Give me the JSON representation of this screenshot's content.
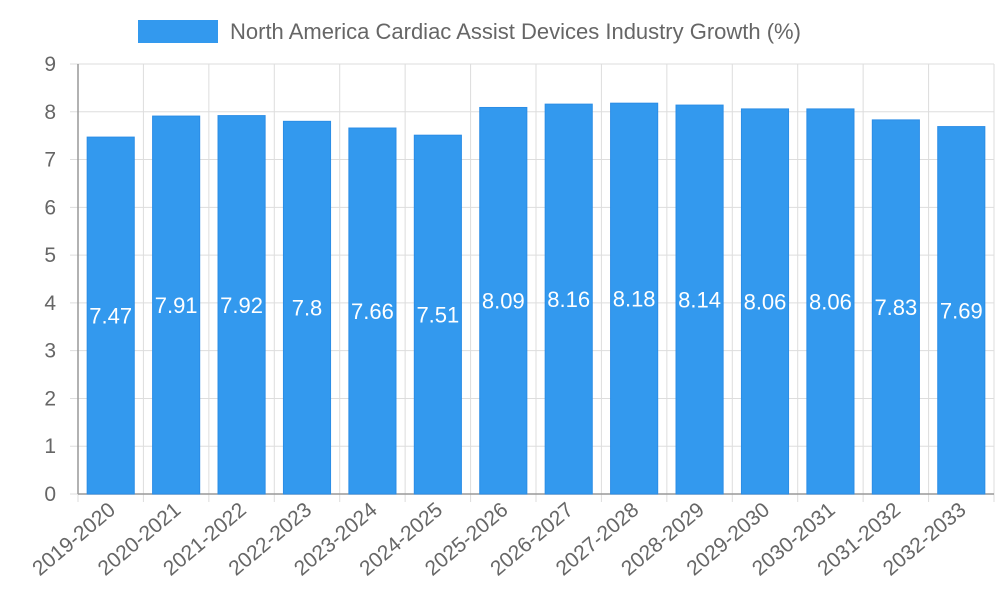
{
  "chart_data": {
    "type": "bar",
    "title": "",
    "xlabel": "",
    "ylabel": "",
    "legend": {
      "label": "North America Cardiac Assist Devices Industry Growth (%)",
      "placement": "top-center"
    },
    "ylim": [
      0,
      9
    ],
    "yticks": [
      "0",
      "1",
      "2",
      "3",
      "4",
      "5",
      "6",
      "7",
      "8",
      "9"
    ],
    "grid": true,
    "categories": [
      "2019-2020",
      "2020-2021",
      "2021-2022",
      "2022-2023",
      "2023-2024",
      "2024-2025",
      "2025-2026",
      "2026-2027",
      "2027-2028",
      "2028-2029",
      "2029-2030",
      "2030-2031",
      "2031-2032",
      "2032-2033"
    ],
    "values": [
      7.47,
      7.91,
      7.92,
      7.8,
      7.66,
      7.51,
      8.09,
      8.16,
      8.18,
      8.14,
      8.06,
      8.06,
      7.83,
      7.69
    ],
    "data_labels": [
      "7.47",
      "7.91",
      "7.92",
      "7.8",
      "7.66",
      "7.51",
      "8.09",
      "8.16",
      "8.18",
      "8.14",
      "8.06",
      "8.06",
      "7.83",
      "7.69"
    ],
    "colors": {
      "bar": "#3399ee",
      "bar_edge": "#2b8de6",
      "grid": "#dddddd",
      "axis": "#999999",
      "text": "#666666",
      "data_label": "#ffffff"
    }
  }
}
